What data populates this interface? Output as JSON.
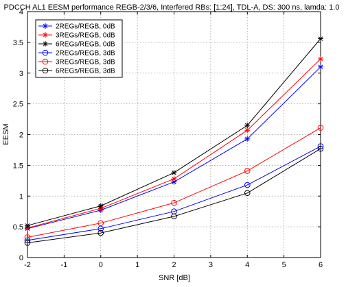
{
  "chart_data": {
    "type": "line",
    "title": "PDCCH AL1 EESM performance REGB-2/3/6, Interfered RBs: [1:24], TDL-A, DS: 300 ns, lamda: 1.0",
    "xlabel": "SNR [dB]",
    "ylabel": "EESM",
    "x": [
      -2,
      0,
      2,
      4,
      6
    ],
    "xlim": [
      -2,
      6
    ],
    "ylim": [
      0,
      4
    ],
    "xticks": [
      "-2",
      "-1",
      "0",
      "1",
      "2",
      "3",
      "4",
      "5",
      "6"
    ],
    "yticks": [
      "0",
      "0.5",
      "1",
      "1.5",
      "2",
      "2.5",
      "3",
      "3.5",
      "4"
    ],
    "grid": true,
    "legend_position": "top-left",
    "series": [
      {
        "name": "2REGs/REGB, 0dB",
        "color": "#0000ff",
        "marker": "asterisk",
        "values": [
          0.47,
          0.77,
          1.23,
          1.93,
          3.1
        ]
      },
      {
        "name": "3REGs/REGB, 0dB",
        "color": "#ff0000",
        "marker": "asterisk",
        "values": [
          0.48,
          0.8,
          1.28,
          2.07,
          3.23
        ]
      },
      {
        "name": "6REGs/REGB, 0dB",
        "color": "#000000",
        "marker": "asterisk",
        "values": [
          0.52,
          0.84,
          1.38,
          2.15,
          3.56
        ]
      },
      {
        "name": "2REGs/REGB, 3dB",
        "color": "#0000ff",
        "marker": "circle",
        "values": [
          0.28,
          0.47,
          0.75,
          1.18,
          1.81
        ]
      },
      {
        "name": "3REGs/REGB, 3dB",
        "color": "#ff0000",
        "marker": "circle",
        "values": [
          0.33,
          0.56,
          0.89,
          1.41,
          2.11
        ]
      },
      {
        "name": "6REGs/REGB, 3dB",
        "color": "#000000",
        "marker": "circle",
        "values": [
          0.24,
          0.4,
          0.67,
          1.05,
          1.77
        ]
      }
    ]
  }
}
